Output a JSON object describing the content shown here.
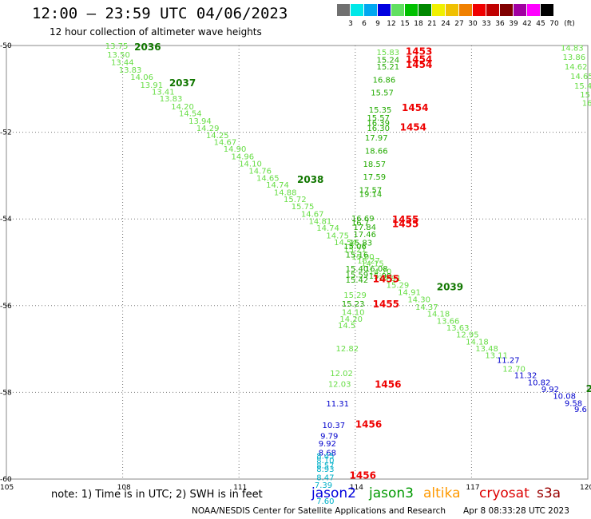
{
  "header": {
    "title": "12:00 — 23:59 UTC 04/06/2023",
    "subtitle": "12 hour collection of altimeter wave heights"
  },
  "legend": {
    "unit": "(ft)",
    "bins": [
      {
        "label": "3",
        "color": "#707070"
      },
      {
        "label": "6",
        "color": "#00e8e8"
      },
      {
        "label": "9",
        "color": "#00a8f0"
      },
      {
        "label": "12",
        "color": "#0000e0"
      },
      {
        "label": "15",
        "color": "#60e060"
      },
      {
        "label": "18",
        "color": "#00c000"
      },
      {
        "label": "21",
        "color": "#008800"
      },
      {
        "label": "24",
        "color": "#f0f000"
      },
      {
        "label": "27",
        "color": "#f0c000"
      },
      {
        "label": "30",
        "color": "#f08000"
      },
      {
        "label": "33",
        "color": "#f00000"
      },
      {
        "label": "36",
        "color": "#c00000"
      },
      {
        "label": "39",
        "color": "#800000"
      },
      {
        "label": "42",
        "color": "#a000a0"
      },
      {
        "label": "45",
        "color": "#ff00ff"
      },
      {
        "label": "70",
        "color": "#000000"
      }
    ]
  },
  "map": {
    "lon_ticks": [
      "105",
      "108",
      "111",
      "114",
      "117",
      "120"
    ],
    "lat_ticks": [
      "-50",
      "-52",
      "-54",
      "-56",
      "-58",
      "-60"
    ]
  },
  "colors": {
    "light_green": "#66dd44",
    "green": "#22aa00",
    "dark_green": "#117700",
    "teal": "#00b0c8",
    "blue": "#0000cc",
    "red": "#ee0000"
  },
  "observations": [
    {
      "v": "13.75",
      "lon": 107.55,
      "lat": -50.0,
      "c": "light_green"
    },
    {
      "v": "13.50",
      "lon": 107.6,
      "lat": -50.2,
      "c": "light_green"
    },
    {
      "v": "13.44",
      "lon": 107.7,
      "lat": -50.38,
      "c": "light_green"
    },
    {
      "v": "13.83",
      "lon": 107.9,
      "lat": -50.55,
      "c": "light_green"
    },
    {
      "v": "14.06",
      "lon": 108.2,
      "lat": -50.72,
      "c": "light_green"
    },
    {
      "v": "13.91",
      "lon": 108.45,
      "lat": -50.9,
      "c": "light_green"
    },
    {
      "v": "13.41",
      "lon": 108.75,
      "lat": -51.06,
      "c": "light_green"
    },
    {
      "v": "13.83",
      "lon": 108.95,
      "lat": -51.22,
      "c": "light_green"
    },
    {
      "v": "14.20",
      "lon": 109.25,
      "lat": -51.4,
      "c": "light_green"
    },
    {
      "v": "14.54",
      "lon": 109.45,
      "lat": -51.56,
      "c": "light_green"
    },
    {
      "v": "13.94",
      "lon": 109.7,
      "lat": -51.73,
      "c": "light_green"
    },
    {
      "v": "14.29",
      "lon": 109.9,
      "lat": -51.9,
      "c": "light_green"
    },
    {
      "v": "14.25",
      "lon": 110.15,
      "lat": -52.06,
      "c": "light_green"
    },
    {
      "v": "14.67",
      "lon": 110.35,
      "lat": -52.22,
      "c": "light_green"
    },
    {
      "v": "14.90",
      "lon": 110.6,
      "lat": -52.38,
      "c": "light_green"
    },
    {
      "v": "14.96",
      "lon": 110.8,
      "lat": -52.55,
      "c": "light_green"
    },
    {
      "v": "14.10",
      "lon": 111.0,
      "lat": -52.72,
      "c": "light_green"
    },
    {
      "v": "14.76",
      "lon": 111.25,
      "lat": -52.88,
      "c": "light_green"
    },
    {
      "v": "14.65",
      "lon": 111.45,
      "lat": -53.05,
      "c": "light_green"
    },
    {
      "v": "14.74",
      "lon": 111.7,
      "lat": -53.2,
      "c": "light_green"
    },
    {
      "v": "14.88",
      "lon": 111.9,
      "lat": -53.38,
      "c": "light_green"
    },
    {
      "v": "15.72",
      "lon": 112.15,
      "lat": -53.54,
      "c": "light_green"
    },
    {
      "v": "15.75",
      "lon": 112.35,
      "lat": -53.7,
      "c": "light_green"
    },
    {
      "v": "14.67",
      "lon": 112.6,
      "lat": -53.88,
      "c": "light_green"
    },
    {
      "v": "14.81",
      "lon": 112.8,
      "lat": -54.04,
      "c": "light_green"
    },
    {
      "v": "14.74",
      "lon": 113.0,
      "lat": -54.2,
      "c": "light_green"
    },
    {
      "v": "14.75",
      "lon": 113.25,
      "lat": -54.37,
      "c": "light_green"
    },
    {
      "v": "14.54",
      "lon": 113.45,
      "lat": -54.53,
      "c": "light_green"
    },
    {
      "v": "15.21",
      "lon": 113.7,
      "lat": -54.7,
      "c": "light_green"
    },
    {
      "v": "15.00",
      "lon": 113.9,
      "lat": -54.86,
      "c": "light_green"
    },
    {
      "v": "14.15",
      "lon": 114.15,
      "lat": -55.02,
      "c": "light_green"
    },
    {
      "v": "14.70",
      "lon": 114.35,
      "lat": -55.2,
      "c": "light_green"
    },
    {
      "v": "14.91",
      "lon": 114.6,
      "lat": -55.36,
      "c": "light_green"
    },
    {
      "v": "15.29",
      "lon": 114.8,
      "lat": -55.52,
      "c": "light_green"
    },
    {
      "v": "14.91",
      "lon": 115.1,
      "lat": -55.68,
      "c": "light_green"
    },
    {
      "v": "14.30",
      "lon": 115.35,
      "lat": -55.85,
      "c": "light_green"
    },
    {
      "v": "14.37",
      "lon": 115.55,
      "lat": -56.02,
      "c": "light_green"
    },
    {
      "v": "14.18",
      "lon": 115.85,
      "lat": -56.18,
      "c": "light_green"
    },
    {
      "v": "13.66",
      "lon": 116.1,
      "lat": -56.34,
      "c": "light_green"
    },
    {
      "v": "13.63",
      "lon": 116.35,
      "lat": -56.5,
      "c": "light_green"
    },
    {
      "v": "12.95",
      "lon": 116.6,
      "lat": -56.66,
      "c": "light_green"
    },
    {
      "v": "14.18",
      "lon": 116.85,
      "lat": -56.82,
      "c": "light_green"
    },
    {
      "v": "13.48",
      "lon": 117.1,
      "lat": -56.98,
      "c": "light_green"
    },
    {
      "v": "13.11",
      "lon": 117.35,
      "lat": -57.14,
      "c": "light_green"
    },
    {
      "v": "12.70",
      "lon": 117.8,
      "lat": -57.45,
      "c": "light_green"
    },
    {
      "v": "11.27",
      "lon": 117.65,
      "lat": -57.25,
      "c": "blue"
    },
    {
      "v": "11.32",
      "lon": 118.1,
      "lat": -57.6,
      "c": "blue"
    },
    {
      "v": "10.82",
      "lon": 118.45,
      "lat": -57.76,
      "c": "blue"
    },
    {
      "v": "9.92",
      "lon": 118.8,
      "lat": -57.92,
      "c": "blue"
    },
    {
      "v": "10.08",
      "lon": 119.1,
      "lat": -58.08,
      "c": "blue"
    },
    {
      "v": "9.58",
      "lon": 119.4,
      "lat": -58.24,
      "c": "blue"
    },
    {
      "v": "9.6",
      "lon": 119.65,
      "lat": -58.38,
      "c": "blue"
    },
    {
      "v": "14.83",
      "lon": 119.3,
      "lat": -50.05,
      "c": "light_green"
    },
    {
      "v": "13.86",
      "lon": 119.35,
      "lat": -50.26,
      "c": "light_green"
    },
    {
      "v": "14.62",
      "lon": 119.4,
      "lat": -50.48,
      "c": "light_green"
    },
    {
      "v": "14.65",
      "lon": 119.55,
      "lat": -50.7,
      "c": "light_green"
    },
    {
      "v": "15.4",
      "lon": 119.65,
      "lat": -50.92,
      "c": "light_green"
    },
    {
      "v": "15.",
      "lon": 119.8,
      "lat": -51.12,
      "c": "light_green"
    },
    {
      "v": "16",
      "lon": 119.85,
      "lat": -51.32,
      "c": "light_green"
    },
    {
      "v": "15.83",
      "lon": 114.55,
      "lat": -50.15,
      "c": "light_green"
    },
    {
      "v": "15.24",
      "lon": 114.55,
      "lat": -50.32,
      "c": "green"
    },
    {
      "v": "15.21",
      "lon": 114.55,
      "lat": -50.48,
      "c": "green"
    },
    {
      "v": "16.86",
      "lon": 114.45,
      "lat": -50.78,
      "c": "green"
    },
    {
      "v": "15.57",
      "lon": 114.4,
      "lat": -51.08,
      "c": "green"
    },
    {
      "v": "15.35",
      "lon": 114.35,
      "lat": -51.47,
      "c": "green"
    },
    {
      "v": "15.57",
      "lon": 114.3,
      "lat": -51.66,
      "c": "green"
    },
    {
      "v": "16.39",
      "lon": 114.3,
      "lat": -51.78,
      "c": "green"
    },
    {
      "v": "16.30",
      "lon": 114.3,
      "lat": -51.9,
      "c": "green"
    },
    {
      "v": "17.97",
      "lon": 114.25,
      "lat": -52.12,
      "c": "green"
    },
    {
      "v": "18.66",
      "lon": 114.25,
      "lat": -52.42,
      "c": "green"
    },
    {
      "v": "18.57",
      "lon": 114.2,
      "lat": -52.73,
      "c": "green"
    },
    {
      "v": "17.59",
      "lon": 114.2,
      "lat": -53.02,
      "c": "green"
    },
    {
      "v": "17.57",
      "lon": 114.1,
      "lat": -53.32,
      "c": "green"
    },
    {
      "v": "19.14",
      "lon": 114.1,
      "lat": -53.42,
      "c": "green"
    },
    {
      "v": "16.69",
      "lon": 113.9,
      "lat": -53.98,
      "c": "green"
    },
    {
      "v": "16.7",
      "lon": 113.9,
      "lat": -54.08,
      "c": "green"
    },
    {
      "v": "17.84",
      "lon": 113.95,
      "lat": -54.18,
      "c": "green"
    },
    {
      "v": "17.46",
      "lon": 113.95,
      "lat": -54.35,
      "c": "green"
    },
    {
      "v": "15.83",
      "lon": 113.85,
      "lat": -54.54,
      "c": "green"
    },
    {
      "v": "15.06",
      "lon": 113.7,
      "lat": -54.62,
      "c": "green"
    },
    {
      "v": "15.16",
      "lon": 113.75,
      "lat": -54.82,
      "c": "green"
    },
    {
      "v": "15.27",
      "lon": 114.05,
      "lat": -54.95,
      "c": "light_green"
    },
    {
      "v": "15.40",
      "lon": 113.75,
      "lat": -55.14,
      "c": "green"
    },
    {
      "v": "16.08",
      "lon": 114.25,
      "lat": -55.14,
      "c": "green"
    },
    {
      "v": "15.59",
      "lon": 113.75,
      "lat": -55.28,
      "c": "green"
    },
    {
      "v": "15.99",
      "lon": 114.35,
      "lat": -55.3,
      "c": "green"
    },
    {
      "v": "15.42",
      "lon": 113.75,
      "lat": -55.4,
      "c": "green"
    },
    {
      "v": "15.29",
      "lon": 113.7,
      "lat": -55.75,
      "c": "light_green"
    },
    {
      "v": "15.23",
      "lon": 113.65,
      "lat": -55.95,
      "c": "green"
    },
    {
      "v": "14.10",
      "lon": 113.65,
      "lat": -56.14,
      "c": "light_green"
    },
    {
      "v": "14.20",
      "lon": 113.6,
      "lat": -56.3,
      "c": "light_green"
    },
    {
      "v": "14.5",
      "lon": 113.55,
      "lat": -56.45,
      "c": "light_green"
    },
    {
      "v": "12.82",
      "lon": 113.5,
      "lat": -56.98,
      "c": "light_green"
    },
    {
      "v": "12.02",
      "lon": 113.35,
      "lat": -57.55,
      "c": "light_green"
    },
    {
      "v": "12.03",
      "lon": 113.3,
      "lat": -57.8,
      "c": "light_green"
    },
    {
      "v": "11.31",
      "lon": 113.25,
      "lat": -58.25,
      "c": "blue"
    },
    {
      "v": "10.37",
      "lon": 113.15,
      "lat": -58.75,
      "c": "blue"
    },
    {
      "v": "9.79",
      "lon": 113.1,
      "lat": -59.0,
      "c": "blue"
    },
    {
      "v": "9.92",
      "lon": 113.05,
      "lat": -59.17,
      "c": "blue"
    },
    {
      "v": "8.68",
      "lon": 113.05,
      "lat": -59.38,
      "c": "blue"
    },
    {
      "v": "8.45",
      "lon": 113.0,
      "lat": -59.46,
      "c": "teal"
    },
    {
      "v": "8.10",
      "lon": 113.0,
      "lat": -59.56,
      "c": "teal"
    },
    {
      "v": "8.57",
      "lon": 113.0,
      "lat": -59.68,
      "c": "teal"
    },
    {
      "v": "8.93",
      "lon": 113.0,
      "lat": -59.76,
      "c": "teal"
    },
    {
      "v": "8.47",
      "lon": 113.0,
      "lat": -59.95,
      "c": "teal"
    },
    {
      "v": "7.39",
      "lon": 112.95,
      "lat": -60.13,
      "c": "teal"
    },
    {
      "v": "7.60",
      "lon": 113.0,
      "lat": -60.5,
      "c": "teal"
    }
  ],
  "time_labels": [
    {
      "t": "2036",
      "lon": 108.3,
      "lat": -50.02,
      "c": "dark_green"
    },
    {
      "t": "2037",
      "lon": 109.2,
      "lat": -50.85,
      "c": "dark_green"
    },
    {
      "t": "2038",
      "lon": 112.5,
      "lat": -53.08,
      "c": "dark_green"
    },
    {
      "t": "2039",
      "lon": 116.1,
      "lat": -55.55,
      "c": "dark_green"
    },
    {
      "t": "2",
      "lon": 119.95,
      "lat": -57.9,
      "c": "dark_green"
    },
    {
      "t": "1453",
      "lon": 115.3,
      "lat": -50.12,
      "c": "red"
    },
    {
      "t": "1454",
      "lon": 115.3,
      "lat": -50.3,
      "c": "red"
    },
    {
      "t": "1454",
      "lon": 115.3,
      "lat": -50.42,
      "c": "red"
    },
    {
      "t": "1454",
      "lon": 115.2,
      "lat": -51.42,
      "c": "red"
    },
    {
      "t": "1454",
      "lon": 115.15,
      "lat": -51.87,
      "c": "red"
    },
    {
      "t": "1455",
      "lon": 114.95,
      "lat": -54.0,
      "c": "red"
    },
    {
      "t": "1455",
      "lon": 114.95,
      "lat": -54.1,
      "c": "red"
    },
    {
      "t": "1455",
      "lon": 114.45,
      "lat": -55.37,
      "c": "red"
    },
    {
      "t": "1455",
      "lon": 114.45,
      "lat": -55.95,
      "c": "red"
    },
    {
      "t": "1456",
      "lon": 114.5,
      "lat": -57.8,
      "c": "red"
    },
    {
      "t": "1456",
      "lon": 114.0,
      "lat": -58.72,
      "c": "red"
    },
    {
      "t": "1456",
      "lon": 113.85,
      "lat": -59.9,
      "c": "red"
    }
  ],
  "footer": {
    "note": "note:  1) Time is in UTC;  2) SWH is in feet",
    "satellites": [
      {
        "name": "jason2",
        "color": "#0000dd"
      },
      {
        "name": "jason3",
        "color": "#009900"
      },
      {
        "name": "altika",
        "color": "#ff9900"
      },
      {
        "name": "cryosat",
        "color": "#dd0000"
      },
      {
        "name": "s3a",
        "color": "#990000"
      }
    ],
    "credit": "NOAA/NESDIS Center for Satellite Applications and Research",
    "generated": "Apr  8 08:33:28 UTC 2023"
  }
}
